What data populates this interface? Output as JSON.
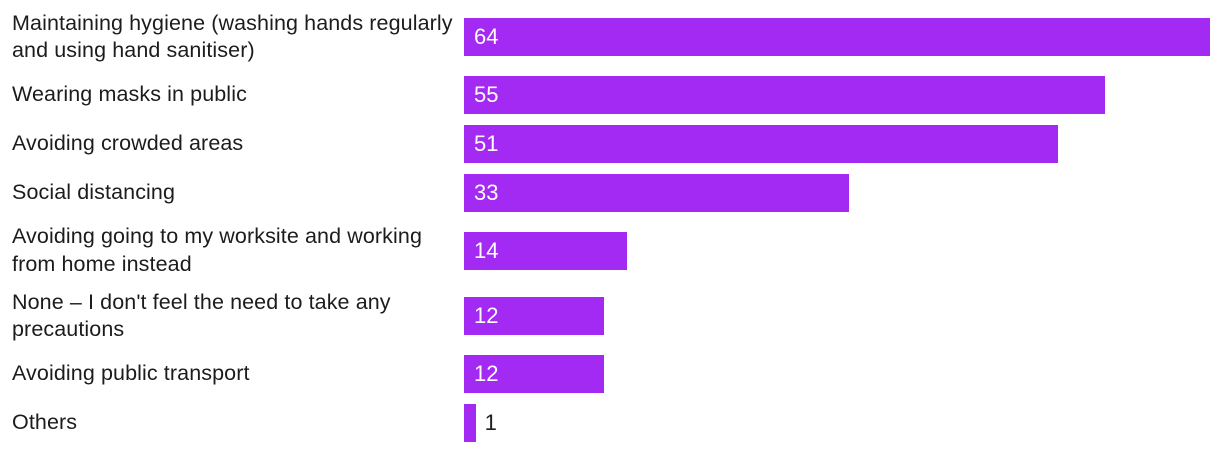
{
  "chart_data": {
    "type": "bar",
    "orientation": "horizontal",
    "title": "",
    "xlabel": "",
    "ylabel": "",
    "categories": [
      "Maintaining hygiene (washing hands regularly and using hand sanitiser)",
      "Wearing masks in public",
      "Avoiding crowded areas",
      "Social distancing",
      "Avoiding going to my worksite and working from home instead",
      "None – I don't feel the need to take any precautions",
      "Avoiding public transport",
      "Others"
    ],
    "values": [
      64,
      55,
      51,
      33,
      14,
      12,
      12,
      1
    ],
    "xlim": [
      0,
      64
    ],
    "grid": false,
    "legend": false,
    "value_label_position": "inside-start, outside when bar too small",
    "colors": {
      "bar": "#a32af2",
      "category_label": "#1c1c1c",
      "value_label_inside": "#ffffff",
      "value_label_outside": "#1c1c1c",
      "background": "#ffffff"
    }
  }
}
